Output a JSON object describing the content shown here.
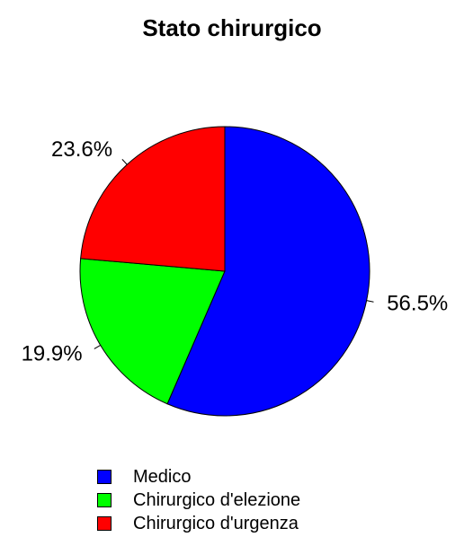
{
  "chart_data": {
    "type": "pie",
    "title": "Stato chirurgico",
    "slices": [
      {
        "name": "Medico",
        "value": 56.5,
        "label": "56.5%",
        "color": "#0000FF"
      },
      {
        "name": "Chirurgico d'elezione",
        "value": 19.9,
        "label": "19.9%",
        "color": "#00FF00"
      },
      {
        "name": "Chirurgico d'urgenza",
        "value": 23.6,
        "label": "23.6%",
        "color": "#FF0000"
      }
    ],
    "start_angle_deg": 90,
    "direction": "clockwise",
    "legend_position": "bottom"
  }
}
